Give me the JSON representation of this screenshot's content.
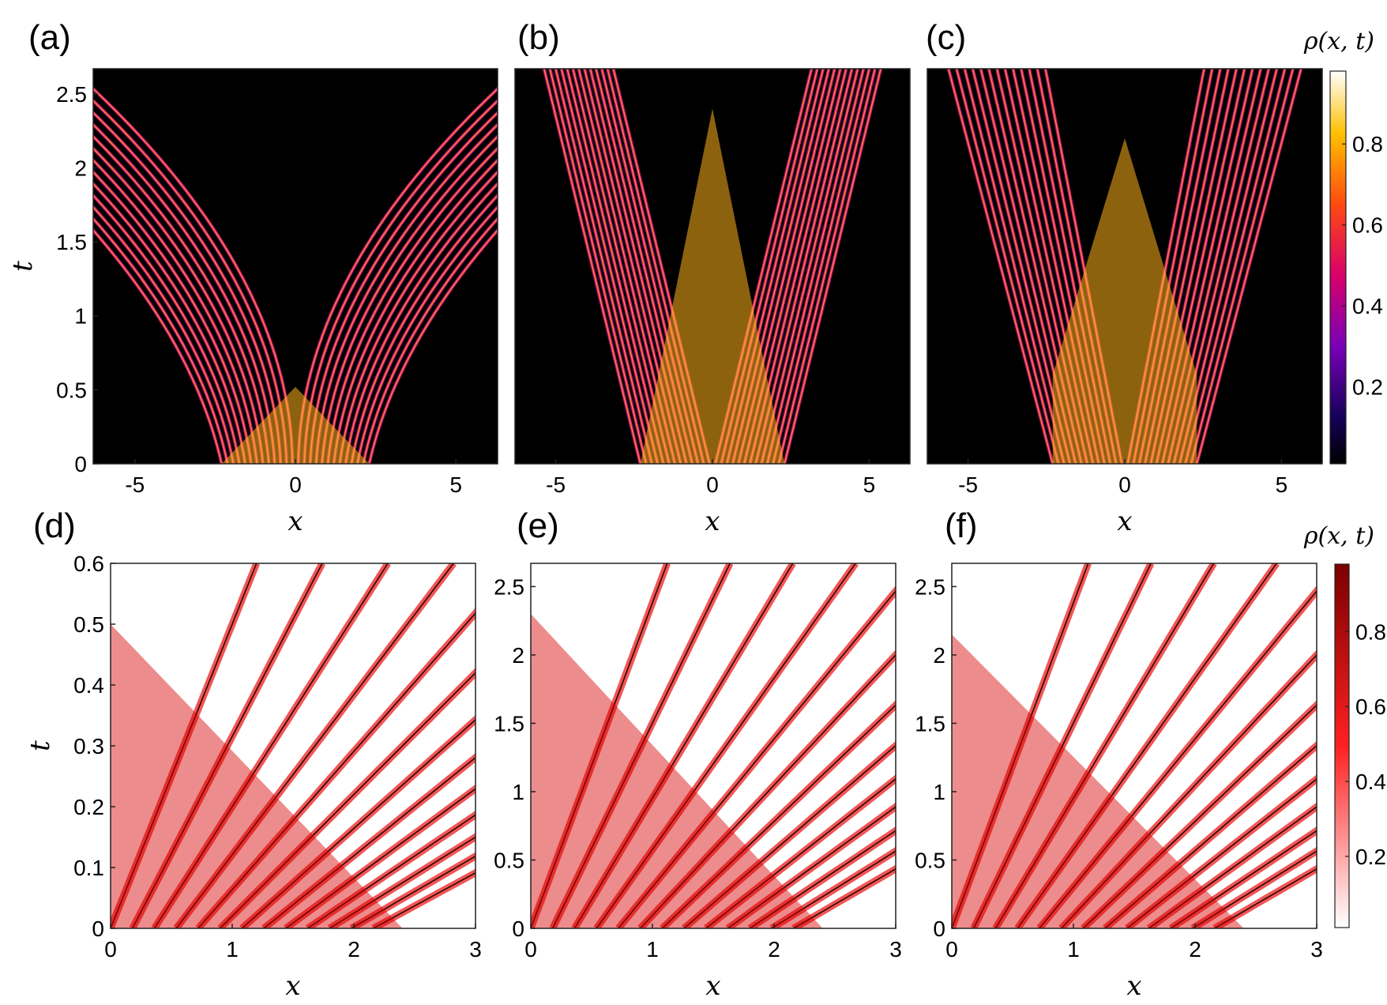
{
  "chart_data": [
    {
      "panel": "(a)",
      "type": "heatmap",
      "xlabel": "x",
      "ylabel": "t",
      "xlim": [
        -6.3,
        6.3
      ],
      "ylim": [
        0,
        2.67
      ],
      "xticks": [
        -5,
        0,
        5
      ],
      "yticks": [
        0,
        0.5,
        1,
        1.5,
        2,
        2.5
      ],
      "colormap": "hot-magenta"
    },
    {
      "panel": "(b)",
      "type": "heatmap",
      "xlabel": "x",
      "ylabel": "",
      "xlim": [
        -6.3,
        6.3
      ],
      "ylim": [
        0,
        2.67
      ],
      "xticks": [
        -5,
        0,
        5
      ],
      "yticks": [],
      "colormap": "hot-magenta"
    },
    {
      "panel": "(c)",
      "type": "heatmap",
      "xlabel": "x",
      "ylabel": "",
      "xlim": [
        -6.3,
        6.3
      ],
      "ylim": [
        0,
        2.67
      ],
      "xticks": [
        -5,
        0,
        5
      ],
      "yticks": [],
      "colormap": "hot-magenta",
      "colorbar": {
        "title": "ρ(x, t)",
        "ticks": [
          0.2,
          0.4,
          0.6,
          0.8
        ]
      }
    },
    {
      "panel": "(d)",
      "type": "heatmap",
      "xlabel": "x",
      "ylabel": "t",
      "xlim": [
        0,
        3
      ],
      "ylim": [
        0,
        0.6
      ],
      "xticks": [
        0,
        1,
        2,
        3
      ],
      "yticks": [
        0,
        0.1,
        0.2,
        0.3,
        0.4,
        0.5,
        0.6
      ],
      "colormap": "white-red"
    },
    {
      "panel": "(e)",
      "type": "heatmap",
      "xlabel": "x",
      "ylabel": "",
      "xlim": [
        0,
        3
      ],
      "ylim": [
        0,
        2.67
      ],
      "xticks": [
        0,
        1,
        2,
        3
      ],
      "yticks": [
        0,
        0.5,
        1,
        1.5,
        2,
        2.5
      ],
      "colormap": "white-red"
    },
    {
      "panel": "(f)",
      "type": "heatmap",
      "xlabel": "x",
      "ylabel": "",
      "xlim": [
        0,
        3
      ],
      "ylim": [
        0,
        2.67
      ],
      "xticks": [
        0,
        1,
        2,
        3
      ],
      "yticks": [
        0,
        0.5,
        1,
        1.5,
        2,
        2.5
      ],
      "colormap": "white-red",
      "colorbar": {
        "title": "ρ(x, t)",
        "ticks": [
          0.2,
          0.4,
          0.6,
          0.8
        ]
      }
    }
  ]
}
